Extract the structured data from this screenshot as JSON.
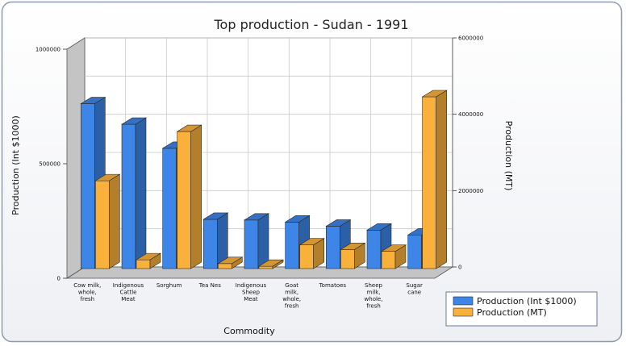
{
  "chart_data": {
    "type": "bar",
    "title": "Top production - Sudan - 1991",
    "xlabel": "Commodity",
    "ylabel": "Production (Int $1000)",
    "y2label": "Production (MT)",
    "ylim": [
      0,
      1000000
    ],
    "y2lim": [
      0,
      6000000
    ],
    "yticks": [
      "0",
      "500000",
      "1000000"
    ],
    "y2ticks": [
      "0",
      "2000000",
      "4000000",
      "6000000"
    ],
    "grid": true,
    "legend": "bottom-right",
    "categories": [
      [
        "Cow milk,",
        "whole,",
        "fresh"
      ],
      [
        "Indigenous",
        "Cattle",
        "Meat"
      ],
      [
        "Sorghum"
      ],
      [
        "Tea Nes"
      ],
      [
        "Indigenous",
        "Sheep",
        "Meat"
      ],
      [
        "Goat",
        "milk,",
        "whole,",
        "fresh"
      ],
      [
        "Tomatoes"
      ],
      [
        "Sheep",
        "milk,",
        "whole,",
        "fresh"
      ],
      [
        "Sugar",
        "cane"
      ]
    ],
    "series": [
      {
        "name": "Production (Int $1000)",
        "axis": "left",
        "color": "#3d85e6",
        "values": [
          720000,
          630000,
          525000,
          215000,
          212000,
          203000,
          185000,
          168000,
          147000
        ]
      },
      {
        "name": "Production (MT)",
        "axis": "right",
        "color": "#f9b13c",
        "values": [
          2300000,
          230000,
          3590000,
          130000,
          60000,
          620000,
          500000,
          450000,
          4500000
        ]
      }
    ]
  }
}
